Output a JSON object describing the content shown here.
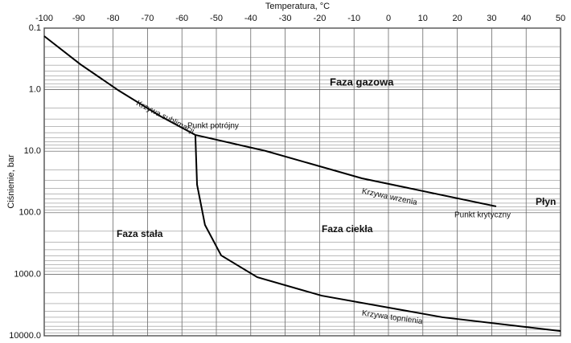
{
  "chart_data": {
    "type": "line",
    "title": "Temperatura, °C",
    "y_label": "Ciśnienie, bar",
    "xlim": [
      -100,
      50
    ],
    "xticks": [
      -100,
      -90,
      -80,
      -70,
      -60,
      -50,
      -40,
      -30,
      -20,
      -10,
      0,
      10,
      20,
      30,
      40,
      50
    ],
    "ylim": [
      0.1,
      10000
    ],
    "ylog": true,
    "y_inverted": true,
    "yticks": [
      {
        "value": 0.1,
        "label": "0.1"
      },
      {
        "value": 1,
        "label": "1.0"
      },
      {
        "value": 10,
        "label": "10.0"
      },
      {
        "value": 100,
        "label": "100.0"
      },
      {
        "value": 1000,
        "label": "1000.0"
      },
      {
        "value": 10000,
        "label": "10000.0"
      }
    ],
    "grid": true,
    "minor_grid": true,
    "series": [
      {
        "name": "Krzywa sublimacji",
        "color": "#000000",
        "x": [
          -100,
          -89.5,
          -78.3,
          -66.1,
          -56.1
        ],
        "values": [
          0.135,
          0.387,
          1.04,
          2.73,
          5.45
        ]
      },
      {
        "name": "Krzywa wrzenia",
        "color": "#000000",
        "x": [
          -56.1,
          -35.7,
          -7.7,
          31.3
        ],
        "values": [
          5.45,
          9.9,
          27.6,
          79
        ]
      },
      {
        "name": "Krzywa topnienia",
        "color": "#000000",
        "x": [
          -56.1,
          -55.6,
          -53.3,
          -48.6,
          -38.1,
          -19.4,
          15.7,
          50
        ],
        "values": [
          5.45,
          35,
          158,
          494,
          1117,
          2230,
          5000,
          8370
        ]
      }
    ],
    "annotations": [
      "Faza gazowa",
      "Faza stała",
      "Faza ciekła",
      "Punkt potrójny",
      "Punkt krytyczny",
      "Płyn"
    ]
  }
}
